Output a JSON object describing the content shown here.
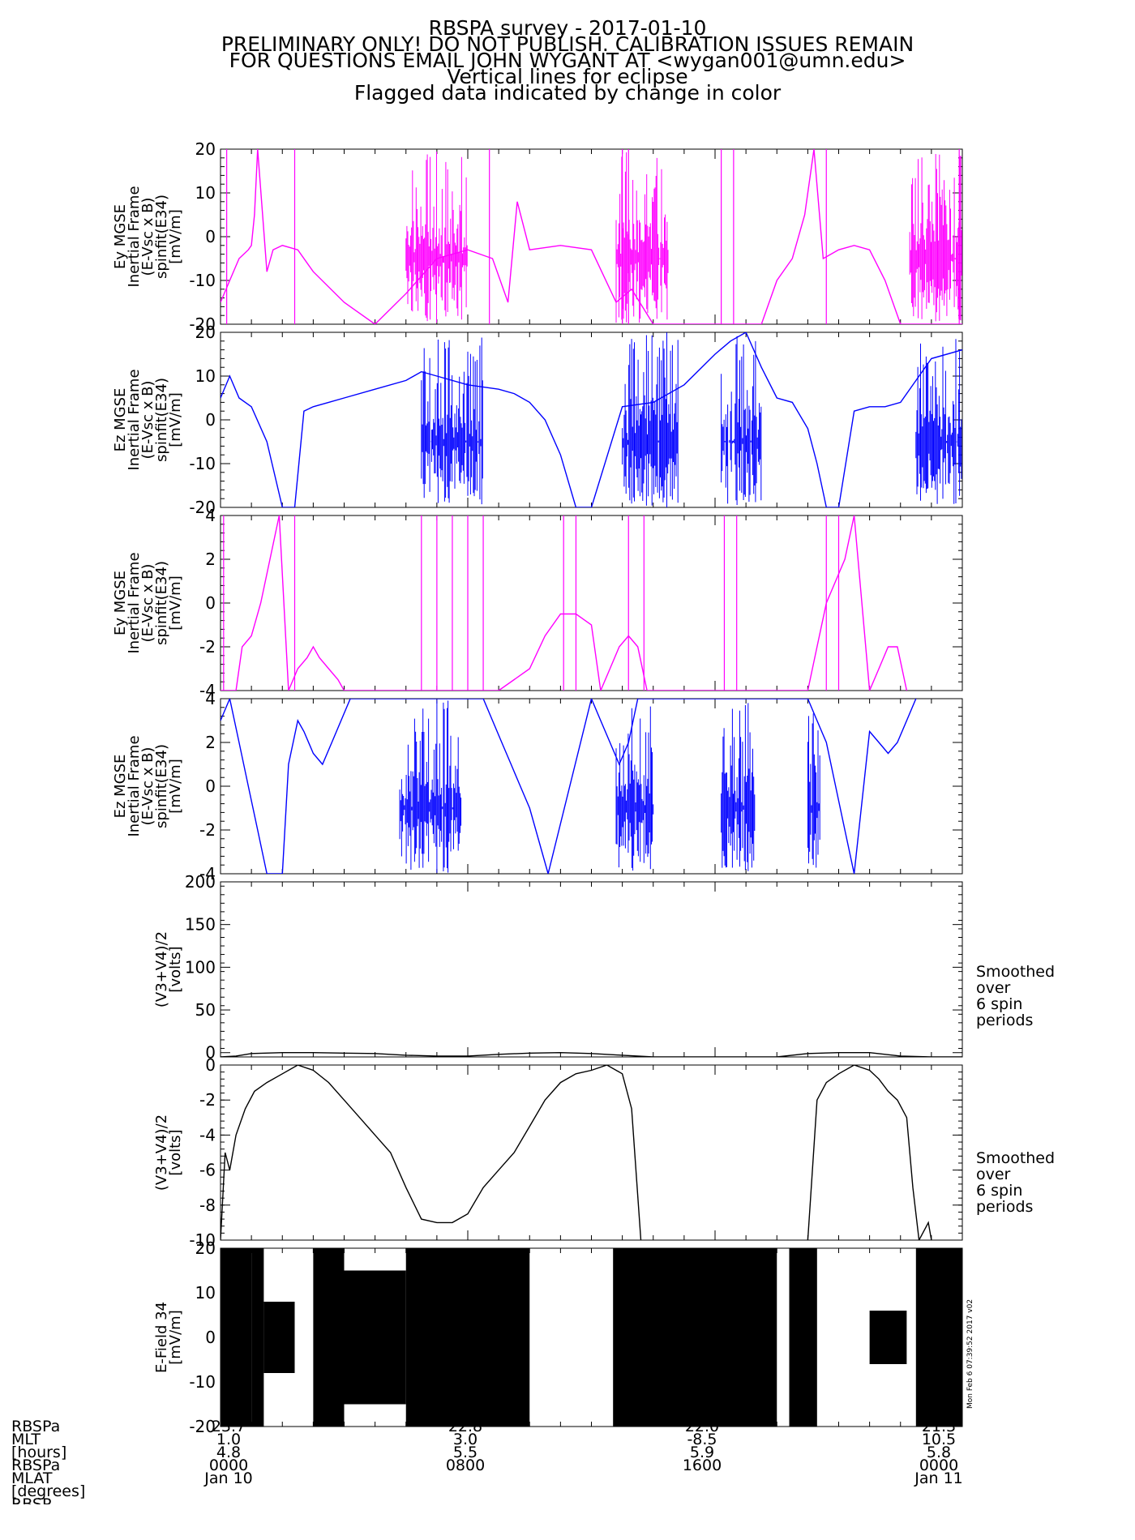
{
  "header": {
    "lines": [
      "RBSPA survey - 2017-01-10",
      "PRELIMINARY ONLY! DO NOT PUBLISH. CALIBRATION ISSUES REMAIN",
      "FOR QUESTIONS EMAIL JOHN WYGANT AT <wygan001@umn.edu>",
      "Vertical lines for eclipse",
      "Flagged data indicated by change in color"
    ]
  },
  "colors": {
    "magenta": "#ff00ff",
    "blue": "#0000ff",
    "black": "#000000"
  },
  "chart_data": [
    {
      "type": "line",
      "panel": "ey-full",
      "ylabel": [
        "Ey MGSE",
        "Inertial Frame",
        "(E-Vsc x B)",
        "spinfit(E34)",
        "[mV/m]"
      ],
      "ylim": [
        -20,
        20
      ],
      "yticks": [
        -20,
        -10,
        0,
        10,
        20
      ],
      "color": "#ff00ff",
      "x_hours": [
        0,
        0.3,
        0.6,
        0.9,
        1.0,
        1.1,
        1.2,
        1.5,
        1.7,
        2.0,
        2.5,
        3.0,
        4.0,
        5.0,
        6.0,
        7.0,
        8.0,
        8.8,
        9.3,
        9.6,
        10.0,
        11.0,
        12.0,
        12.8,
        13.3,
        14.0,
        15.0,
        16.0,
        16.5,
        17.0,
        17.5,
        18.0,
        18.5,
        18.9,
        19.2,
        19.5,
        20.0,
        20.5,
        21.0,
        21.5,
        22.0,
        22.5,
        23.0,
        24.0
      ],
      "y": [
        -15,
        -10,
        -5,
        -3,
        -2,
        5,
        20,
        -8,
        -3,
        -2,
        -3,
        -8,
        -15,
        -20,
        -13,
        -5,
        -3,
        -5,
        -15,
        8,
        -3,
        -2,
        -3,
        -15,
        -12,
        -20,
        -20,
        -20,
        -20,
        -20,
        -20,
        -10,
        -5,
        5,
        20,
        -5,
        -3,
        -2,
        -3,
        -10,
        -20,
        -20,
        -20,
        -20
      ],
      "spikes_hours": [
        0.2,
        2.4,
        8.7,
        13.0,
        13.2,
        16.2,
        16.6,
        19.6,
        23.9
      ],
      "band_hours": [
        [
          6.0,
          8.0
        ],
        [
          12.8,
          14.5
        ],
        [
          22.3,
          24.0
        ]
      ]
    },
    {
      "type": "line",
      "panel": "ez-full",
      "ylabel": [
        "Ez MGSE",
        "Inertial Frame",
        "(E-Vsc x B)",
        "spinfit(E34)",
        "[mV/m]"
      ],
      "ylim": [
        -20,
        20
      ],
      "yticks": [
        -20,
        -10,
        0,
        10,
        20
      ],
      "color": "#0000ff",
      "x_hours": [
        0,
        0.3,
        0.6,
        1.0,
        1.5,
        2.0,
        2.4,
        2.7,
        3.0,
        3.5,
        4.0,
        5.0,
        6.0,
        6.5,
        7.0,
        8.0,
        9.0,
        9.5,
        10.0,
        10.5,
        11.0,
        11.5,
        12.0,
        13.0,
        14.0,
        15.0,
        16.0,
        16.5,
        17.0,
        17.5,
        18.0,
        18.5,
        19.0,
        19.3,
        19.6,
        20.0,
        20.5,
        21.0,
        21.5,
        22.0,
        23.0,
        24.0
      ],
      "y": [
        5,
        10,
        5,
        3,
        -5,
        -20,
        -20,
        2,
        3,
        4,
        5,
        7,
        9,
        11,
        10,
        8,
        7,
        6,
        4,
        0,
        -8,
        -20,
        -20,
        3,
        4,
        8,
        15,
        18,
        20,
        12,
        5,
        4,
        -2,
        -10,
        -20,
        -20,
        2,
        3,
        3,
        4,
        14,
        16
      ],
      "band_hours": [
        [
          6.5,
          8.5
        ],
        [
          13.0,
          14.8
        ],
        [
          16.2,
          17.5
        ],
        [
          22.5,
          24.0
        ]
      ]
    },
    {
      "type": "line",
      "panel": "ey-zoom",
      "ylabel": [
        "Ey MGSE",
        "Inertial Frame",
        "(E-Vsc x B)",
        "spinfit(E34)",
        "[mV/m]"
      ],
      "ylim": [
        -4,
        4
      ],
      "yticks": [
        -4,
        -2,
        0,
        2,
        4
      ],
      "color": "#ff00ff",
      "x_hours": [
        0,
        0.5,
        0.7,
        1.0,
        1.3,
        1.6,
        1.9,
        2.2,
        2.5,
        2.8,
        3.0,
        3.2,
        3.5,
        3.8,
        4.0,
        9.0,
        9.5,
        10.0,
        10.5,
        11.0,
        11.5,
        12.0,
        12.3,
        12.6,
        12.9,
        13.2,
        13.5,
        13.8,
        19.0,
        19.3,
        19.6,
        19.9,
        20.2,
        20.5,
        21.0,
        21.3,
        21.6,
        21.9,
        22.2
      ],
      "y": [
        -4,
        -4,
        -2,
        -1.5,
        0,
        2,
        4,
        -4,
        -3,
        -2.5,
        -2,
        -2.5,
        -3,
        -3.5,
        -4,
        -4,
        -3.5,
        -3,
        -1.5,
        -0.5,
        -0.5,
        -1,
        -4,
        -3,
        -2,
        -1.5,
        -2,
        -4,
        -4,
        -2,
        0,
        1,
        2,
        4,
        -4,
        -3,
        -2,
        -2,
        -4
      ],
      "spikes_hours": [
        0.1,
        2.4,
        6.5,
        7.0,
        7.5,
        8.0,
        8.5,
        11.1,
        11.5,
        13.2,
        13.7,
        16.3,
        16.7,
        19.6,
        20.0
      ]
    },
    {
      "type": "line",
      "panel": "ez-zoom",
      "ylabel": [
        "Ez MGSE",
        "Inertial Frame",
        "(E-Vsc x B)",
        "spinfit(E34)",
        "[mV/m]"
      ],
      "ylim": [
        -4,
        4
      ],
      "yticks": [
        -4,
        -2,
        0,
        2,
        4
      ],
      "color": "#0000ff",
      "x_hours": [
        0,
        0.3,
        0.6,
        0.9,
        1.2,
        1.5,
        1.8,
        2.0,
        2.2,
        2.5,
        2.7,
        3.0,
        3.3,
        3.6,
        3.9,
        4.2,
        8.5,
        8.8,
        9.1,
        9.4,
        9.7,
        10.0,
        10.3,
        10.6,
        12.0,
        12.3,
        12.6,
        12.9,
        13.2,
        13.5,
        19.0,
        19.3,
        19.6,
        19.9,
        20.2,
        20.5,
        21.0,
        21.3,
        21.6,
        21.9,
        22.2,
        22.5
      ],
      "y": [
        3,
        4,
        2,
        0,
        -2,
        -4,
        -4,
        -4,
        1,
        3,
        2.5,
        1.5,
        1,
        2,
        3,
        4,
        4,
        3,
        2,
        1,
        0,
        -1,
        -2.5,
        -4,
        4,
        3,
        2,
        1,
        2,
        4,
        4,
        3,
        2,
        0,
        -2,
        -4,
        2.5,
        2,
        1.5,
        2,
        3,
        4
      ],
      "band_hours": [
        [
          5.8,
          7.8
        ],
        [
          12.8,
          14.0
        ],
        [
          16.2,
          17.3
        ],
        [
          19.0,
          19.4
        ]
      ]
    },
    {
      "type": "line",
      "panel": "vsc-full",
      "ylabel": [
        "(V3+V4)/2",
        "[volts]"
      ],
      "ylim": [
        -5,
        200
      ],
      "yticks": [
        0,
        50,
        100,
        150,
        200
      ],
      "color": "#000000",
      "note": [
        "Smoothed",
        "over",
        "6 spin",
        "periods"
      ],
      "x_hours": [
        0,
        0.5,
        1.0,
        2.0,
        3.0,
        4.0,
        5.0,
        6.0,
        7.0,
        8.0,
        9.0,
        10.0,
        11.0,
        12.0,
        13.0,
        14.0,
        15.0,
        16.0,
        17.0,
        18.0,
        19.0,
        20.0,
        21.0,
        22.0,
        23.0,
        24.0
      ],
      "y": [
        -5,
        -4,
        -1,
        0,
        0,
        -0.5,
        -1,
        -3,
        -4,
        -4,
        -2,
        -0.5,
        0,
        -1,
        -3,
        -5,
        -5,
        -5,
        -5,
        -5,
        -1,
        0,
        0,
        -4,
        -5,
        -5
      ]
    },
    {
      "type": "line",
      "panel": "vsc-zoom",
      "ylabel": [
        "(V3+V4)/2",
        "[volts]"
      ],
      "ylim": [
        -10,
        0
      ],
      "yticks": [
        -10,
        -8,
        -6,
        -4,
        -2,
        0
      ],
      "color": "#000000",
      "note": [
        "Smoothed",
        "over",
        "6 spin",
        "periods"
      ],
      "x_hours": [
        0,
        0.15,
        0.3,
        0.5,
        0.8,
        1.1,
        1.5,
        2.0,
        2.5,
        3.0,
        3.5,
        4.0,
        4.5,
        5.0,
        5.5,
        6.0,
        6.5,
        7.0,
        7.5,
        8.0,
        8.5,
        9.0,
        9.5,
        10.0,
        10.5,
        11.0,
        11.5,
        12.0,
        12.5,
        13.0,
        13.3,
        13.6
      ],
      "y": [
        -10,
        -5,
        -6,
        -4,
        -2.5,
        -1.5,
        -1,
        -0.5,
        0,
        -0.3,
        -1,
        -2,
        -3,
        -4,
        -5,
        -7,
        -8.8,
        -9,
        -9,
        -8.5,
        -7,
        -6,
        -5,
        -3.5,
        -2,
        -1,
        -0.5,
        -0.3,
        0,
        -0.5,
        -2.5,
        -10
      ],
      "x2_hours": [
        19.0,
        19.3,
        19.6,
        20.0,
        20.5,
        21.0,
        21.3,
        21.6,
        21.9,
        22.2,
        22.4,
        22.6,
        22.9,
        23.0
      ],
      "y2": [
        -10,
        -2,
        -1,
        -0.5,
        0,
        -0.3,
        -0.8,
        -1.5,
        -2,
        -3,
        -7,
        -10,
        -9,
        -10
      ]
    },
    {
      "type": "area",
      "panel": "efield34",
      "ylabel": [
        "E-Field 34",
        "[mV/m]"
      ],
      "ylim": [
        -20,
        20
      ],
      "yticks": [
        -20,
        -10,
        0,
        10,
        20
      ],
      "color": "#000000",
      "segments_hours": [
        [
          0.0,
          1.0
        ],
        [
          1.0,
          1.4
        ],
        [
          1.4,
          2.4
        ],
        [
          3.0,
          4.0
        ],
        [
          4.0,
          6.0
        ],
        [
          6.0,
          8.0
        ],
        [
          8.0,
          10.0
        ],
        [
          12.7,
          18.0
        ],
        [
          18.4,
          19.3
        ],
        [
          21.0,
          22.2
        ],
        [
          22.5,
          24.0
        ]
      ],
      "amplitude": [
        20,
        20,
        8,
        20,
        15,
        20,
        20,
        20,
        20,
        6,
        20
      ]
    }
  ],
  "xaxis": {
    "labels": [
      "RBSPa",
      "MLT",
      "[hours]",
      "RBSPa",
      "MLAT",
      "[degrees]",
      "RBSP"
    ],
    "columns": [
      {
        "values": [
          "23.7",
          "1.0",
          "4.8",
          "0000",
          "Jan 10"
        ]
      },
      {
        "values": [
          "22.8",
          "3.0",
          "5.5",
          "0800",
          ""
        ]
      },
      {
        "values": [
          "22.0",
          "-8.5",
          "5.9",
          "1600",
          ""
        ]
      },
      {
        "values": [
          "21.3",
          "10.5",
          "5.8",
          "0000",
          "Jan 11"
        ]
      }
    ]
  },
  "stamp": "Mon Feb  6 07:39:52 2017 v02"
}
